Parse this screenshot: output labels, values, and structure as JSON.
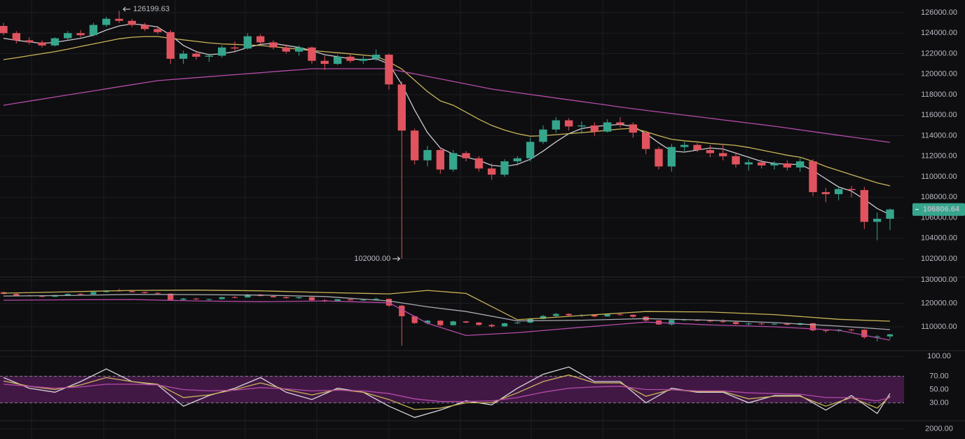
{
  "chart_data": [
    {
      "type": "candlestick",
      "up_color": "#35a58c",
      "down_color": "#e0535f",
      "open": [
        124700,
        124000,
        123300,
        123100,
        122800,
        123500,
        124000,
        123800,
        124800,
        125400,
        125200,
        124800,
        124400,
        124100,
        121500,
        122000,
        121700,
        121800,
        122600,
        122500,
        123700,
        123100,
        122600,
        122200,
        122600,
        121300,
        121000,
        121700,
        121300,
        121500,
        121900,
        119000,
        114500,
        111600,
        112600,
        110700,
        112300,
        111800,
        110800,
        110200,
        111500,
        111800,
        113400,
        114600,
        115500,
        114900,
        115000,
        114400,
        115300,
        115100,
        114300,
        112700,
        111000,
        112900,
        113100,
        112600,
        112300,
        112000,
        111200,
        111400,
        111100,
        111300,
        110900,
        111500,
        108500,
        108300,
        108800,
        108700,
        105600,
        105900
      ],
      "high": [
        125000,
        124200,
        123600,
        123300,
        123600,
        124200,
        124300,
        125000,
        125600,
        126199.63,
        125400,
        125000,
        124700,
        124300,
        122300,
        122300,
        122000,
        122800,
        123200,
        124000,
        123900,
        123300,
        122900,
        122800,
        122700,
        121800,
        121900,
        121900,
        121800,
        122400,
        122000,
        119300,
        114700,
        113000,
        112800,
        112600,
        112500,
        112000,
        111300,
        111700,
        112000,
        113800,
        115000,
        115800,
        115700,
        115400,
        115300,
        115600,
        115800,
        115300,
        114500,
        112900,
        113200,
        113400,
        113300,
        113100,
        113200,
        112400,
        111700,
        111700,
        111500,
        111600,
        111800,
        111700,
        108900,
        109000,
        109100,
        109000,
        106500,
        106900
      ],
      "low": [
        123800,
        123000,
        122900,
        122600,
        122700,
        123300,
        123600,
        123700,
        124600,
        125000,
        124600,
        124200,
        123900,
        121000,
        121000,
        121400,
        121200,
        121600,
        122200,
        122400,
        122900,
        122400,
        122000,
        121800,
        121000,
        120400,
        120900,
        121100,
        121000,
        121300,
        118500,
        102000,
        111200,
        111000,
        110300,
        110500,
        111500,
        110500,
        109700,
        110000,
        111100,
        111500,
        113200,
        114300,
        114500,
        114200,
        114000,
        114300,
        114800,
        113800,
        112200,
        110700,
        110500,
        112500,
        112400,
        111900,
        111600,
        110900,
        110600,
        110800,
        110700,
        110600,
        110500,
        108100,
        107500,
        107700,
        108000,
        104900,
        103800,
        104800
      ],
      "close": [
        124000,
        123300,
        123100,
        122800,
        123500,
        124000,
        123800,
        124800,
        125400,
        125200,
        124800,
        124400,
        124100,
        121500,
        122000,
        121700,
        121800,
        122600,
        122500,
        123700,
        123100,
        122600,
        122200,
        122600,
        121300,
        121000,
        121700,
        121300,
        121500,
        121900,
        119000,
        114500,
        111600,
        112600,
        110700,
        112300,
        111800,
        110800,
        110200,
        111500,
        111800,
        113400,
        114600,
        115500,
        114900,
        115000,
        114400,
        115300,
        115100,
        114300,
        112700,
        111000,
        112900,
        113100,
        112600,
        112300,
        112000,
        111200,
        111400,
        111100,
        111300,
        110900,
        111500,
        108500,
        108300,
        108800,
        108700,
        105600,
        105900,
        106806.64
      ],
      "series": [
        {
          "color": "#c9c9d1",
          "values": [
            123500,
            123300,
            123150,
            123000,
            123100,
            123300,
            123500,
            123800,
            124300,
            124700,
            124900,
            124800,
            124600,
            123800,
            122800,
            122200,
            121900,
            122000,
            122200,
            122600,
            122900,
            123000,
            122800,
            122600,
            122300,
            121900,
            121700,
            121500,
            121400,
            121500,
            121000,
            119000,
            116500,
            114300,
            112800,
            112200,
            111900,
            111600,
            111100,
            111000,
            111200,
            111700,
            112500,
            113400,
            114200,
            114700,
            114900,
            115000,
            115100,
            114900,
            114200,
            113300,
            112500,
            112400,
            112600,
            112800,
            112700,
            112300,
            111900,
            111500,
            111300,
            111200,
            111200,
            110600,
            109800,
            109000,
            108600,
            107800,
            106900,
            106300
          ]
        },
        {
          "color": "#c9b458",
          "values": [
            121420,
            121600,
            121800,
            122000,
            122200,
            122440,
            122700,
            122950,
            123200,
            123450,
            123600,
            123670,
            123670,
            123500,
            123350,
            123200,
            123050,
            122950,
            122900,
            122850,
            122790,
            122680,
            122560,
            122420,
            122310,
            122200,
            122090,
            121980,
            121860,
            121740,
            121200,
            120500,
            119400,
            118300,
            117400,
            116970,
            116300,
            115600,
            115000,
            114550,
            114200,
            113950,
            114000,
            114100,
            114200,
            114300,
            114400,
            114530,
            114650,
            114720,
            114400,
            114000,
            113650,
            113500,
            113400,
            113250,
            113150,
            113050,
            112850,
            112600,
            112350,
            112100,
            111900,
            111500,
            111000,
            110600,
            110200,
            109800,
            109400,
            109110
          ]
        },
        {
          "color": "#b54aa8",
          "values": [
            116970,
            117170,
            117370,
            117570,
            117770,
            117970,
            118170,
            118370,
            118570,
            118770,
            118970,
            119170,
            119370,
            119470,
            119560,
            119660,
            119760,
            119850,
            119950,
            120050,
            120140,
            120240,
            120340,
            120430,
            120530,
            120530,
            120530,
            120530,
            120530,
            120530,
            120530,
            120280,
            120030,
            119780,
            119540,
            119290,
            119040,
            118790,
            118550,
            118370,
            118200,
            118020,
            117850,
            117670,
            117500,
            117330,
            117150,
            116980,
            116800,
            116630,
            116470,
            116320,
            116160,
            116010,
            115850,
            115700,
            115540,
            115390,
            115230,
            115080,
            114920,
            114750,
            114570,
            114400,
            114220,
            114050,
            113870,
            113700,
            113520,
            113350
          ]
        }
      ],
      "ylim": [
        100222,
        127231
      ],
      "yticks": [
        {
          "value": 102000,
          "label": "102000.00"
        },
        {
          "value": 104000,
          "label": "104000.00"
        },
        {
          "value": 106000,
          "label": "106000.00"
        },
        {
          "value": 108000,
          "label": "108000.00"
        },
        {
          "value": 110000,
          "label": "110000.00"
        },
        {
          "value": 112000,
          "label": "112000.00"
        },
        {
          "value": 114000,
          "label": "114000.00"
        },
        {
          "value": 116000,
          "label": "116000.00"
        },
        {
          "value": 118000,
          "label": "118000.00"
        },
        {
          "value": 120000,
          "label": "120000.00"
        },
        {
          "value": 122000,
          "label": "122000.00"
        },
        {
          "value": 124000,
          "label": "124000.00"
        },
        {
          "value": 126000,
          "label": "126000.00"
        }
      ],
      "max_marker": 126199.63,
      "min_marker": {
        "value": 102000,
        "label": "102000.00"
      },
      "last_price": {
        "value": 106806.64,
        "label": "106806.64"
      }
    },
    {
      "type": "line",
      "x": [
        0,
        5,
        10,
        15,
        20,
        25,
        30,
        33,
        36,
        40,
        45,
        50,
        55,
        60,
        65,
        69
      ],
      "series": [
        {
          "color": "#c9b458",
          "values": [
            124330,
            124900,
            125500,
            125600,
            125300,
            124600,
            124000,
            125500,
            124200,
            113000,
            114800,
            116500,
            116300,
            115200,
            113200,
            112400
          ]
        },
        {
          "color": "#a9a9b3",
          "values": [
            123100,
            123300,
            123800,
            123700,
            123500,
            122900,
            121000,
            118500,
            116500,
            112500,
            112800,
            113500,
            112800,
            111800,
            110300,
            108800
          ]
        },
        {
          "color": "#b54aa8",
          "values": [
            121300,
            121500,
            121600,
            121000,
            120700,
            121000,
            120200,
            111500,
            106300,
            107500,
            109800,
            112000,
            110800,
            110000,
            108500,
            104300
          ]
        }
      ],
      "ylim": [
        99850,
        131194
      ],
      "yticks": [
        {
          "value": 110000,
          "label": "110000.00"
        },
        {
          "value": 120000,
          "label": "120000.00"
        },
        {
          "value": 130000,
          "label": "130000.00"
        }
      ]
    },
    {
      "type": "line",
      "x": [
        0,
        2,
        4,
        6,
        8,
        10,
        12,
        14,
        16,
        18,
        20,
        22,
        24,
        26,
        28,
        30,
        32,
        34,
        36,
        38,
        40,
        42,
        44,
        46,
        48,
        50,
        52,
        54,
        56,
        58,
        60,
        62,
        64,
        66,
        68,
        69
      ],
      "series": [
        {
          "color": "#d6d6dc",
          "values": [
            68,
            52,
            46,
            62,
            81,
            62,
            57,
            25,
            41,
            52,
            68,
            46,
            35,
            52,
            46,
            25,
            8,
            19,
            33,
            27,
            52,
            73,
            84,
            62,
            62,
            30,
            52,
            46,
            46,
            30,
            41,
            41,
            19,
            41,
            14,
            44
          ]
        },
        {
          "color": "#c9b458",
          "values": [
            63,
            55,
            50,
            57,
            68,
            62,
            58,
            38,
            42,
            50,
            60,
            50,
            42,
            50,
            46,
            35,
            20,
            22,
            30,
            30,
            45,
            62,
            72,
            60,
            60,
            40,
            50,
            47,
            47,
            36,
            40,
            40,
            25,
            38,
            22,
            40
          ]
        },
        {
          "color": "#b54aa8",
          "values": [
            58,
            55,
            52,
            54,
            58,
            58,
            57,
            50,
            48,
            49,
            53,
            51,
            48,
            49,
            48,
            44,
            36,
            32,
            32,
            33,
            38,
            46,
            52,
            54,
            55,
            50,
            50,
            48,
            48,
            45,
            44,
            43,
            38,
            38,
            33,
            38
          ]
        }
      ],
      "band": [
        30,
        70
      ],
      "band_color": "#4a1a4e",
      "ylim": [
        3,
        108.6
      ],
      "yticks": [
        {
          "value": 30,
          "label": "30.00"
        },
        {
          "value": 50,
          "label": "50.00"
        },
        {
          "value": 70,
          "label": "70.00"
        },
        {
          "value": 100,
          "label": "100.00"
        }
      ]
    },
    {
      "type": "bar",
      "ylim": [
        0,
        3600
      ],
      "yticks": [
        {
          "value": 2000,
          "label": "2000.00"
        }
      ]
    }
  ]
}
